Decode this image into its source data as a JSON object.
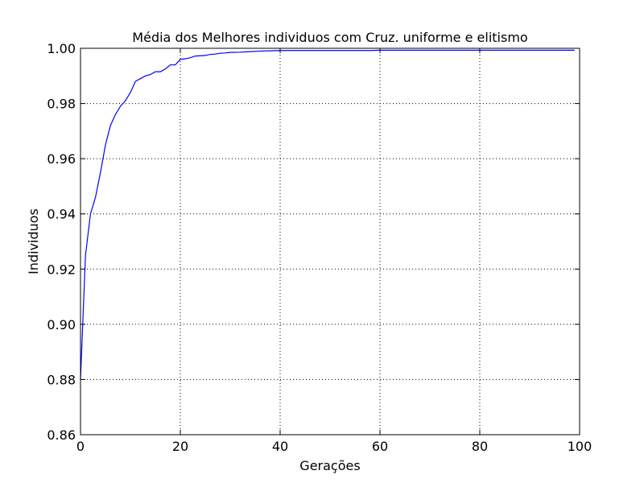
{
  "chart_data": {
    "type": "line",
    "title": "Média dos Melhores individuos com Cruz. uniforme e elitismo",
    "xlabel": "Gerações",
    "ylabel": "Individuos",
    "xlim": [
      0,
      100
    ],
    "ylim": [
      0.86,
      1.0
    ],
    "grid": true,
    "x_ticks": [
      0,
      20,
      40,
      60,
      80,
      100
    ],
    "x_tick_labels": [
      "0",
      "20",
      "40",
      "60",
      "80",
      "100"
    ],
    "y_ticks": [
      0.86,
      0.88,
      0.9,
      0.92,
      0.94,
      0.96,
      0.98,
      1.0
    ],
    "y_tick_labels": [
      "0.86",
      "0.88",
      "0.90",
      "0.92",
      "0.94",
      "0.96",
      "0.98",
      "1.00"
    ],
    "series": [
      {
        "color": "#0000ff",
        "x": [
          0,
          1,
          2,
          3,
          4,
          5,
          6,
          7,
          8,
          9,
          10,
          11,
          12,
          13,
          14,
          15,
          16,
          17,
          18,
          19,
          20,
          21,
          22,
          23,
          24,
          25,
          26,
          27,
          28,
          29,
          30,
          32,
          34,
          36,
          38,
          40,
          45,
          50,
          55,
          58,
          60,
          65,
          70,
          75,
          80,
          85,
          90,
          95,
          99
        ],
        "y": [
          0.88,
          0.925,
          0.94,
          0.946,
          0.955,
          0.965,
          0.972,
          0.976,
          0.979,
          0.981,
          0.984,
          0.988,
          0.989,
          0.99,
          0.9905,
          0.9915,
          0.9915,
          0.9925,
          0.994,
          0.994,
          0.996,
          0.9962,
          0.9966,
          0.9972,
          0.9973,
          0.9974,
          0.9978,
          0.9979,
          0.9982,
          0.9983,
          0.9985,
          0.9986,
          0.9988,
          0.999,
          0.9991,
          0.9992,
          0.9992,
          0.9992,
          0.9992,
          0.9992,
          0.9993,
          0.9993,
          0.9993,
          0.9993,
          0.9993,
          0.9993,
          0.9993,
          0.9993,
          0.9993
        ]
      }
    ]
  }
}
